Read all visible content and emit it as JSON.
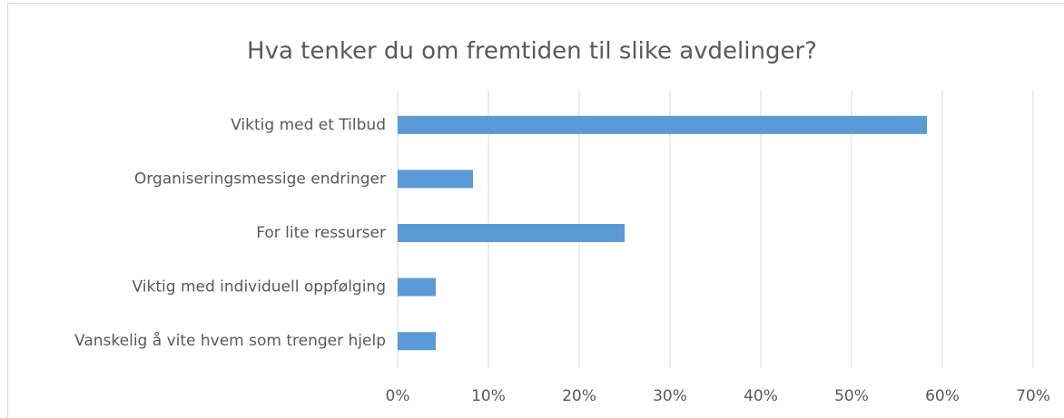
{
  "chart_data": {
    "type": "barh",
    "title": "Hva tenker du om fremtiden til slike avdelinger?",
    "categories": [
      "Viktig med et Tilbud",
      "Organiseringsmessige endringer",
      "For lite ressurser",
      "Viktig med individuell oppfølging",
      "Vanskelig å vite hvem som trenger hjelp"
    ],
    "values": [
      58.3,
      8.3,
      25,
      4.2,
      4.2
    ],
    "color": "#5b9bd5",
    "xlim": [
      0,
      70
    ],
    "xticks": [
      {
        "value": 0,
        "label": "0%"
      },
      {
        "value": 10,
        "label": "10%"
      },
      {
        "value": 20,
        "label": "20%"
      },
      {
        "value": 30,
        "label": "30%"
      },
      {
        "value": 40,
        "label": "40%"
      },
      {
        "value": 50,
        "label": "50%"
      },
      {
        "value": 60,
        "label": "60%"
      },
      {
        "value": 70,
        "label": "70%"
      }
    ],
    "grid": true
  }
}
